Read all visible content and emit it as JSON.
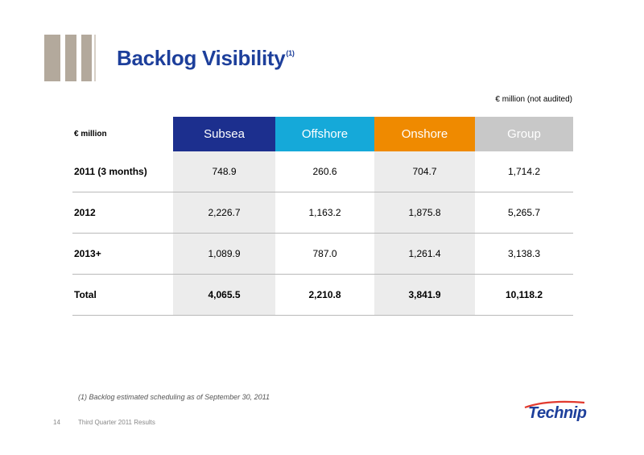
{
  "header": {
    "title": "Backlog Visibility",
    "title_sup": "(1)"
  },
  "unit_note": "€ million (not audited)",
  "table": {
    "corner_label": "€ million",
    "columns": [
      {
        "label": "Subsea",
        "color": "#1c2f8e"
      },
      {
        "label": "Offshore",
        "color": "#15a9d9"
      },
      {
        "label": "Onshore",
        "color": "#ef8a00"
      },
      {
        "label": "Group",
        "color": "#c8c8c8"
      }
    ],
    "rows": [
      {
        "label": "2011 (3 months)",
        "values": [
          "748.9",
          "260.6",
          "704.7",
          "1,714.2"
        ]
      },
      {
        "label": "2012",
        "values": [
          "2,226.7",
          "1,163.2",
          "1,875.8",
          "5,265.7"
        ]
      },
      {
        "label": "2013+",
        "values": [
          "1,089.9",
          "787.0",
          "1,261.4",
          "3,138.3"
        ]
      },
      {
        "label": "Total",
        "values": [
          "4,065.5",
          "2,210.8",
          "3,841.9",
          "10,118.2"
        ]
      }
    ]
  },
  "footnote": "(1) Backlog estimated scheduling as of September 30, 2011",
  "footer": {
    "page_number": "14",
    "text": "Third Quarter 2011 Results"
  },
  "logo": {
    "text": "Technip",
    "color": "#1d3f9b"
  },
  "colors": {
    "accent_bars": "#b3a99c",
    "title": "#1d3f9b"
  }
}
